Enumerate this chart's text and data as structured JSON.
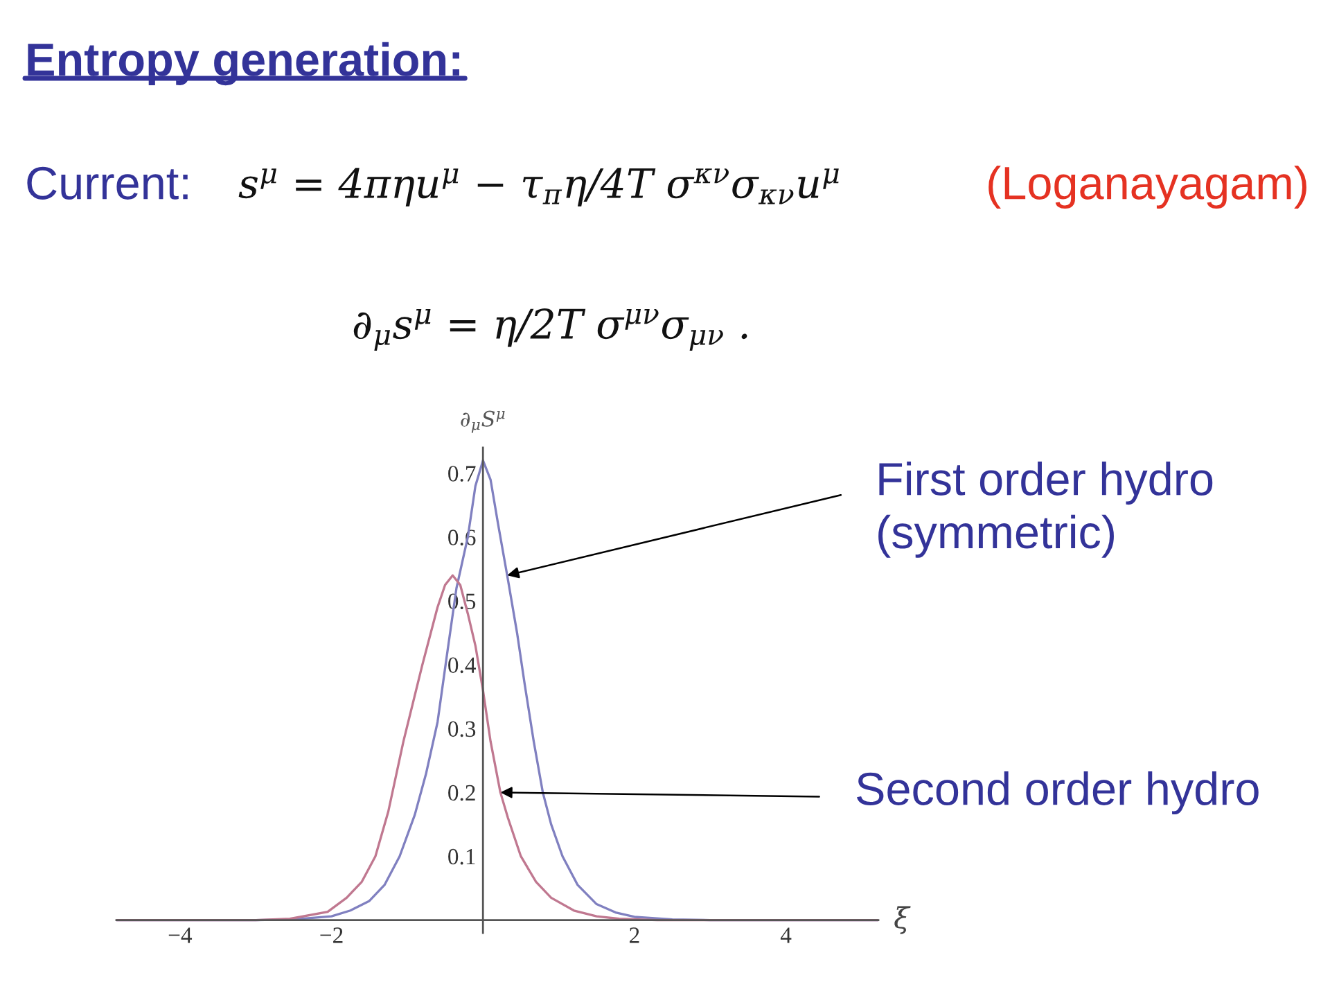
{
  "chart_data": {
    "type": "line",
    "title": "Entropy generation:",
    "xlabel": "ξ",
    "ylabel": "∂$_{μ}$S$^{μ}$",
    "annotations": [
      "Current:",
      "s$^{μ}$ = 4πηu$^{μ}$ − τ$_{π}$η/4T σ$^{κν}$σ$_{κν}$u$^{μ}$",
      "(Loganayagam)",
      "∂$_{μ}$s$^{μ}$ = η/2T σ$^{μν}$σ$_{μν}$ .",
      {
        "text": "First order hydro\n(symmetric)",
        "x": 0.32,
        "y": 0.54
      },
      {
        "text": "Second order hydro",
        "x": 0.23,
        "y": 0.2
      }
    ],
    "series": [
      {
        "color": "#8080c0",
        "x": [
          -4.84,
          -3.0,
          -2.5,
          -2.0,
          -1.75,
          -1.5,
          -1.3,
          -1.1,
          -0.9,
          -0.75,
          -0.6,
          -0.47,
          -0.35,
          -0.2,
          -0.1,
          0.0,
          0.1,
          0.2,
          0.32,
          0.45,
          0.55,
          0.67,
          0.79,
          0.9,
          1.05,
          1.25,
          1.5,
          1.75,
          2.0,
          2.5,
          3.0,
          5.22
        ],
        "values": [
          0.0,
          0.0,
          0.001,
          0.006,
          0.015,
          0.03,
          0.055,
          0.1,
          0.165,
          0.23,
          0.31,
          0.42,
          0.52,
          0.6,
          0.68,
          0.72,
          0.69,
          0.62,
          0.54,
          0.45,
          0.37,
          0.28,
          0.2,
          0.15,
          0.1,
          0.055,
          0.025,
          0.012,
          0.005,
          0.001,
          0.0,
          0.0
        ]
      },
      {
        "color": "#c07890",
        "x": [
          -4.84,
          -3.0,
          -2.55,
          -2.05,
          -1.8,
          -1.6,
          -1.42,
          -1.25,
          -1.05,
          -0.8,
          -0.6,
          -0.5,
          -0.4,
          -0.3,
          -0.2,
          -0.1,
          0.0,
          0.1,
          0.23,
          0.33,
          0.5,
          0.7,
          0.9,
          1.2,
          1.5,
          1.8,
          2.3,
          5.22
        ],
        "values": [
          0.0,
          0.0,
          0.002,
          0.013,
          0.035,
          0.06,
          0.1,
          0.17,
          0.28,
          0.4,
          0.49,
          0.525,
          0.54,
          0.525,
          0.48,
          0.43,
          0.36,
          0.28,
          0.2,
          0.16,
          0.1,
          0.06,
          0.035,
          0.015,
          0.006,
          0.002,
          0.0,
          0.0
        ]
      }
    ],
    "xlim": [
      -4.84,
      5.22
    ],
    "ylim": [
      -0.02,
      0.74
    ],
    "xticks": [
      {
        "value": -4,
        "label": "−4"
      },
      {
        "value": -2,
        "label": "−2"
      },
      2,
      4
    ],
    "yticks": [
      0.1,
      0.2,
      0.3,
      0.4,
      0.5,
      0.6,
      0.7
    ]
  }
}
